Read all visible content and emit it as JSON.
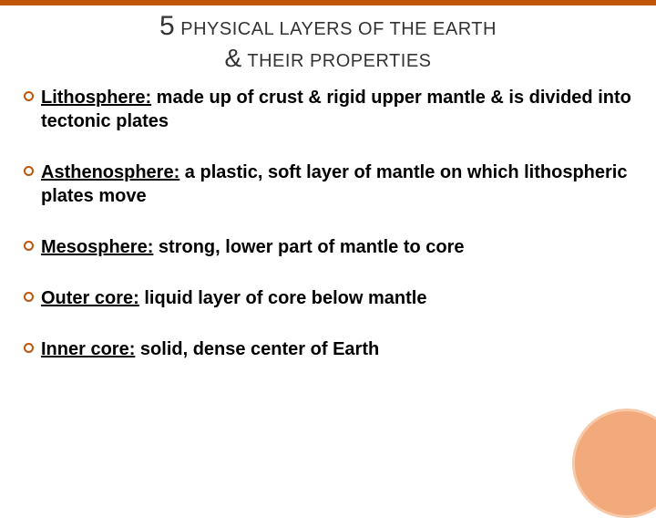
{
  "title": {
    "big_numeral": "5",
    "line1_rest": " PHYSICAL LAYERS OF THE EARTH",
    "amp": "&",
    "line2_rest": " THEIR PROPERTIES"
  },
  "items": [
    {
      "term": "Lithosphere:",
      "desc": " made up of crust & rigid upper mantle & is divided into tectonic plates"
    },
    {
      "term": "Asthenosphere:",
      "desc": " a plastic, soft layer of mantle on which lithospheric plates move"
    },
    {
      "term": "Mesosphere:",
      "desc": " strong, lower part of mantle to core"
    },
    {
      "term": "Outer core:",
      "desc": " liquid layer of core below mantle"
    },
    {
      "term": "Inner core:",
      "desc": " solid, dense center of Earth"
    }
  ],
  "colors": {
    "accent": "#c05508",
    "circle_fill": "#f2a97b",
    "circle_border": "#f7c9a8",
    "background": "#ffffff",
    "text": "#000000"
  },
  "typography": {
    "title_fontsize": 20,
    "numeral_fontsize": 30,
    "item_fontsize": 20,
    "item_fontweight": 700
  }
}
